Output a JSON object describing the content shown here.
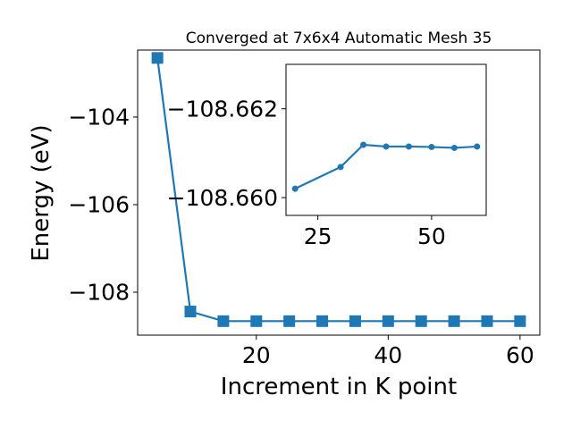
{
  "chart_data": [
    {
      "type": "line",
      "title": "Converged at 7x6x4 Automatic Mesh 35",
      "xlabel": "Increment in K point",
      "ylabel": "Energy (eV)",
      "xlim": [
        2,
        63
      ],
      "ylim": [
        -108.98,
        -102.47
      ],
      "x_ticks": [
        20,
        40,
        60
      ],
      "y_ticks": [
        -104,
        -106,
        -108
      ],
      "x_tick_labels": [
        "20",
        "40",
        "60"
      ],
      "y_tick_labels": [
        "−104",
        "−106",
        "−108"
      ],
      "grid": false,
      "marker": "square",
      "color": "#1f77b4",
      "series": [
        {
          "x": [
            5,
            10,
            15,
            20,
            25,
            30,
            35,
            40,
            45,
            50,
            55,
            60
          ],
          "values": [
            -102.65,
            -108.44,
            -108.66,
            -108.66,
            -108.66,
            -108.66,
            -108.66,
            -108.66,
            -108.66,
            -108.66,
            -108.66,
            -108.66
          ]
        }
      ]
    },
    {
      "type": "line",
      "title": "",
      "xlabel": "",
      "ylabel": "",
      "xlim": [
        18,
        62
      ],
      "ylim": [
        -108.6596,
        -108.663
      ],
      "x_ticks": [
        25,
        50
      ],
      "y_ticks": [
        -108.662,
        -108.66
      ],
      "x_tick_labels": [
        "25",
        "50"
      ],
      "y_tick_labels": [
        "−108.662",
        "−108.660"
      ],
      "grid": false,
      "marker": "circle",
      "color": "#1f77b4",
      "series": [
        {
          "x": [
            20,
            30,
            35,
            40,
            45,
            50,
            55,
            60
          ],
          "values": [
            -108.6602,
            -108.66069,
            -108.66119,
            -108.66115,
            -108.66115,
            -108.66114,
            -108.66112,
            -108.66115
          ]
        }
      ]
    }
  ]
}
